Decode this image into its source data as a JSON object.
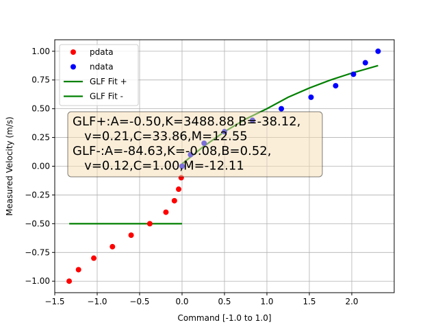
{
  "chart_data": {
    "type": "scatter",
    "title": "",
    "xlabel": "Command [-1.0 to 1.0]",
    "ylabel": "Measured Velocity (m/s)",
    "xlim": [
      -1.5,
      2.5
    ],
    "ylim": [
      -1.1,
      1.1
    ],
    "xticks": [
      -1.5,
      -1.0,
      -0.5,
      0.0,
      0.5,
      1.0,
      1.5,
      2.0
    ],
    "xtick_labels": [
      "−1.5",
      "−1.0",
      "−0.5",
      "0.0",
      "0.5",
      "1.0",
      "1.5",
      "2.0"
    ],
    "yticks": [
      -1.0,
      -0.75,
      -0.5,
      -0.25,
      0.0,
      0.25,
      0.5,
      0.75,
      1.0
    ],
    "ytick_labels": [
      "−1.00",
      "−0.75",
      "−0.50",
      "−0.25",
      "0.00",
      "0.25",
      "0.50",
      "0.75",
      "1.00"
    ],
    "grid": true,
    "legend_position": "top-left",
    "series": [
      {
        "name": "pdata",
        "kind": "scatter",
        "color": "#ff0000",
        "x": [
          -1.33,
          -1.22,
          -1.04,
          -0.82,
          -0.6,
          -0.38,
          -0.19,
          -0.09,
          -0.04,
          -0.01
        ],
        "y": [
          -1.0,
          -0.9,
          -0.8,
          -0.7,
          -0.6,
          -0.5,
          -0.4,
          -0.3,
          -0.2,
          -0.1
        ]
      },
      {
        "name": "ndata",
        "kind": "scatter",
        "color": "#0000ff",
        "x": [
          0.0,
          0.1,
          0.26,
          0.5,
          0.83,
          1.17,
          1.52,
          1.81,
          2.02,
          2.16,
          2.31
        ],
        "y": [
          0.0,
          0.1,
          0.2,
          0.3,
          0.4,
          0.5,
          0.6,
          0.7,
          0.8,
          0.9,
          1.0
        ]
      },
      {
        "name": "GLF Fit +",
        "kind": "line",
        "color": "#008000",
        "x": [
          0.0,
          0.25,
          0.5,
          0.75,
          1.0,
          1.25,
          1.5,
          1.75,
          2.0,
          2.31
        ],
        "y": [
          0.02,
          0.17,
          0.3,
          0.41,
          0.5,
          0.6,
          0.68,
          0.75,
          0.81,
          0.875
        ]
      },
      {
        "name": "GLF Fit -",
        "kind": "line",
        "color": "#008000",
        "x": [
          -1.33,
          -1.0,
          -0.5,
          0.0
        ],
        "y": [
          -0.5,
          -0.5,
          -0.5,
          -0.5
        ]
      }
    ],
    "annotation": {
      "lines": [
        "GLF+:A=-0.50,K=3488.88,B=-38.12,",
        "   v=0.21,C=33.86,M=12.55",
        "GLF-:A=-84.63,K=-0.08,B=0.52,",
        "   v=0.12,C=1.00,M=-12.11"
      ],
      "background": "#f5deb3"
    }
  }
}
